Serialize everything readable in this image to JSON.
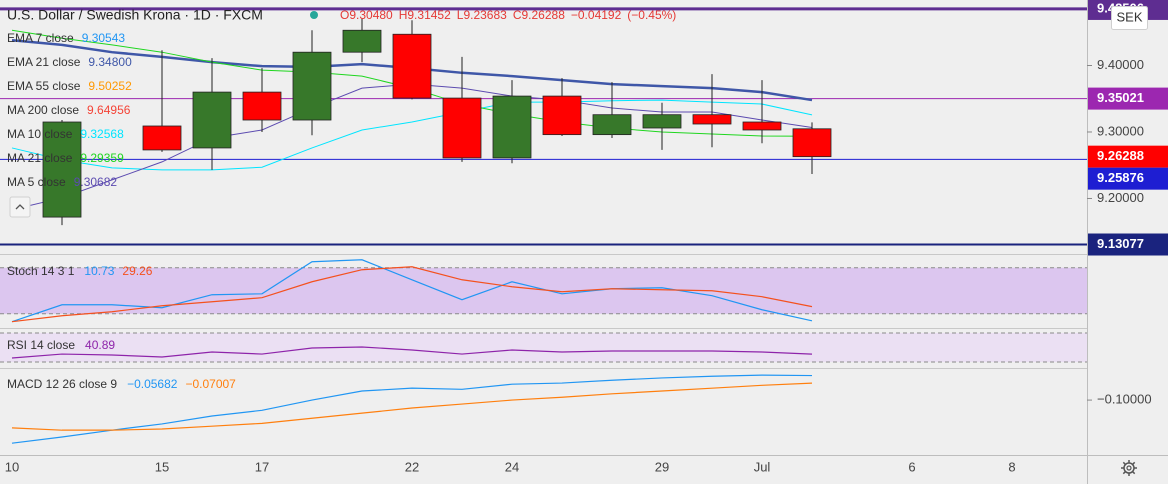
{
  "chart_data": [
    {
      "type": "candlestick",
      "title": "U.S. Dollar / Swedish Krona · 1D · FXCM",
      "ohlc_text": [
        "O9.30480",
        "H9.31452",
        "L9.23683",
        "C9.26288"
      ],
      "change": {
        "value": -0.04192,
        "label": "−0.04192"
      },
      "change_percent": {
        "value": -0.45,
        "label": "(−0.45%)"
      },
      "currency": "SEK",
      "categories": [
        "10",
        null,
        null,
        "15",
        null,
        "17",
        null,
        null,
        "22",
        null,
        "24",
        null,
        null,
        "29",
        null,
        "Jul",
        null,
        null,
        "6",
        null,
        "8"
      ],
      "open": [
        null,
        9.172,
        null,
        9.309,
        9.276,
        9.36,
        9.318,
        9.42,
        9.447,
        9.351,
        9.261,
        9.354,
        9.296,
        9.306,
        9.326,
        9.315,
        9.3048,
        null,
        null,
        null,
        null
      ],
      "high": [
        null,
        9.318,
        null,
        9.423,
        9.411,
        9.396,
        9.453,
        9.471,
        9.468,
        9.413,
        9.378,
        9.381,
        9.375,
        9.344,
        9.387,
        9.378,
        9.31452,
        null,
        null,
        null,
        null
      ],
      "low": [
        null,
        9.16,
        null,
        9.27,
        9.243,
        9.3,
        9.295,
        9.405,
        9.349,
        9.255,
        9.253,
        9.294,
        9.291,
        9.273,
        9.277,
        9.283,
        9.23683,
        null,
        null,
        null,
        null
      ],
      "close": [
        null,
        9.315,
        null,
        9.273,
        9.36,
        9.318,
        9.42,
        9.453,
        9.351,
        9.261,
        9.354,
        9.296,
        9.326,
        9.326,
        9.312,
        9.303,
        9.26288,
        null,
        null,
        null,
        null
      ],
      "up_color": "#37782a",
      "down_color": "#ff0000",
      "ylim": [
        9.1195,
        9.4985
      ],
      "yticks": [
        {
          "value": 9.2,
          "label": "9.20000"
        },
        {
          "value": 9.3,
          "label": "9.30000"
        },
        {
          "value": 9.4,
          "label": "9.40000"
        }
      ],
      "series": [
        {
          "name": "EMA 7 close",
          "color": "#2196f3",
          "last": 9.30543
        },
        {
          "name": "EMA 21 close",
          "color": "#3f57a8",
          "last": {
            "value": 9.348,
            "label": "9.34800"
          },
          "width": 2.5,
          "values": [
            9.438,
            9.431,
            9.42,
            9.413,
            9.405,
            9.399,
            9.398,
            9.402,
            9.396,
            9.389,
            9.384,
            9.378,
            9.372,
            9.369,
            9.366,
            9.36,
            9.348,
            null,
            null,
            null,
            null
          ]
        },
        {
          "name": "EMA 55 close",
          "color": "#ff9800",
          "last": 9.50252
        },
        {
          "name": "MA 200 close",
          "color": "#f44336",
          "last": 9.64956
        },
        {
          "name": "MA 10 close",
          "color": "#00e5ff",
          "last": 9.32568,
          "width": 1,
          "values": [
            9.276,
            9.258,
            9.246,
            9.243,
            9.243,
            9.247,
            9.276,
            9.303,
            9.315,
            9.33,
            9.345,
            9.345,
            9.347,
            9.348,
            9.345,
            9.342,
            9.32568,
            null,
            null,
            null,
            null
          ]
        },
        {
          "name": "MA 21 close",
          "color": "#1fd61f",
          "last": 9.29359,
          "width": 1,
          "values": [
            9.453,
            9.441,
            9.431,
            9.42,
            9.405,
            9.393,
            9.39,
            9.384,
            9.366,
            9.342,
            9.327,
            9.315,
            9.306,
            9.3,
            9.297,
            9.294,
            9.29359,
            null,
            null,
            null,
            null
          ]
        },
        {
          "name": "MA 5 close",
          "color": "#5c4bb0",
          "last": 9.30682,
          "width": 1,
          "values": [
            9.183,
            9.201,
            9.228,
            9.255,
            9.291,
            9.303,
            9.336,
            9.366,
            9.372,
            9.366,
            9.354,
            9.348,
            9.336,
            9.33,
            9.33,
            9.318,
            9.30682,
            null,
            null,
            null,
            null
          ]
        }
      ],
      "price_lines": [
        {
          "value": 9.48506,
          "color": "#5e2d91",
          "width": 3
        },
        {
          "value": 9.35021,
          "color": "#9c27b0",
          "width": 1
        },
        {
          "value": 9.25876,
          "color": "#1e1ed2",
          "width": 1
        },
        {
          "value": 9.13077,
          "color": "#1a237e",
          "width": 2
        }
      ]
    },
    {
      "type": "line",
      "title": "Stoch 14 3 1",
      "ylim": [
        4,
        94
      ],
      "band": [
        20,
        80
      ],
      "band_color": "#dcc6ef",
      "series": [
        {
          "color": "#2196f3",
          "last": 10.73,
          "values": [
            9.6,
            31.7,
            31.7,
            27.8,
            44.8,
            46,
            87.8,
            90.4,
            64.3,
            38.3,
            61.7,
            46,
            52.6,
            53.9,
            43.5,
            25.2,
            10.73,
            null,
            null,
            null,
            null
          ]
        },
        {
          "color": "#f4511e",
          "last": 29.26,
          "values": [
            9.6,
            17.4,
            22.6,
            30.4,
            35.6,
            40.9,
            61.7,
            77.4,
            81.3,
            64.3,
            55.2,
            48.7,
            52.6,
            51.3,
            50,
            42.2,
            29.26,
            null,
            null,
            null,
            null
          ]
        }
      ]
    },
    {
      "type": "line",
      "title": "RSI 14 close",
      "ylim": [
        24.5,
        72.8
      ],
      "band": [
        30,
        70
      ],
      "band_color": "#ebe0f3",
      "series": [
        {
          "color": "#8e24aa",
          "last": 40.89,
          "values": [
            35.5,
            41,
            39.7,
            36.9,
            43.8,
            41,
            49.3,
            50.7,
            46.6,
            41,
            46.6,
            43.8,
            45.2,
            45.2,
            45.2,
            43.8,
            40.89,
            null,
            null,
            null,
            null
          ]
        }
      ]
    },
    {
      "type": "line",
      "title": "MACD 12 26 close 9",
      "ylim": [
        -0.195,
        -0.047
      ],
      "yticks": [
        {
          "value": -0.1,
          "label": "−0.10000"
        }
      ],
      "series": [
        {
          "color": "#2196f3",
          "last": {
            "value": -0.05682,
            "label": "−0.05682"
          },
          "values": [
            -0.176,
            -0.165,
            -0.153,
            -0.142,
            -0.128,
            -0.118,
            -0.1,
            -0.084,
            -0.079,
            -0.081,
            -0.072,
            -0.07,
            -0.065,
            -0.061,
            -0.058,
            -0.056,
            -0.05682,
            null,
            null,
            null,
            null
          ]
        },
        {
          "color": "#ff7f0e",
          "last": {
            "value": -0.07007,
            "label": "−0.07007"
          },
          "values": [
            -0.149,
            -0.153,
            -0.153,
            -0.151,
            -0.146,
            -0.141,
            -0.132,
            -0.123,
            -0.114,
            -0.107,
            -0.1,
            -0.095,
            -0.089,
            -0.084,
            -0.079,
            -0.074,
            -0.07007,
            null,
            null,
            null,
            null
          ]
        }
      ]
    }
  ]
}
